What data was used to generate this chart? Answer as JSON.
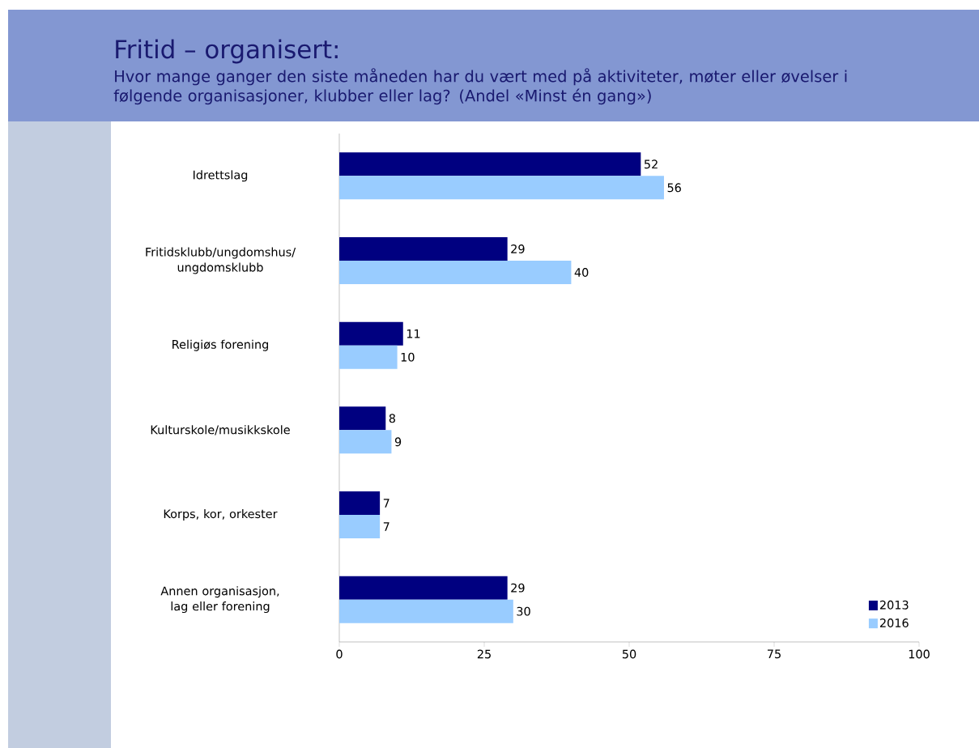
{
  "chart_data": {
    "type": "bar",
    "orientation": "horizontal",
    "title": "Fritid – organisert:",
    "subtitle": "Hvor mange ganger den siste måneden har du vært med på aktiviteter, møter eller øvelser i følgende organisasjoner, klubber eller lag? (Andel «Minst én gang»)",
    "categories": [
      "Idrettslag",
      "Fritidsklubb/ungdomshus/ ungdomsklubb",
      "Religiøs forening",
      "Kulturskole/musikkskole",
      "Korps, kor, orkester",
      "Annen organisasjon, lag eller forening"
    ],
    "series": [
      {
        "name": "2013",
        "color": "#000080",
        "values": [
          52,
          29,
          11,
          8,
          7,
          29
        ]
      },
      {
        "name": "2016",
        "color": "#99ccff",
        "values": [
          56,
          40,
          10,
          9,
          7,
          30
        ]
      }
    ],
    "xlim": [
      0,
      100
    ],
    "xticks": [
      0,
      25,
      50,
      75,
      100
    ],
    "data_labels": true,
    "legend": "bottom right"
  }
}
